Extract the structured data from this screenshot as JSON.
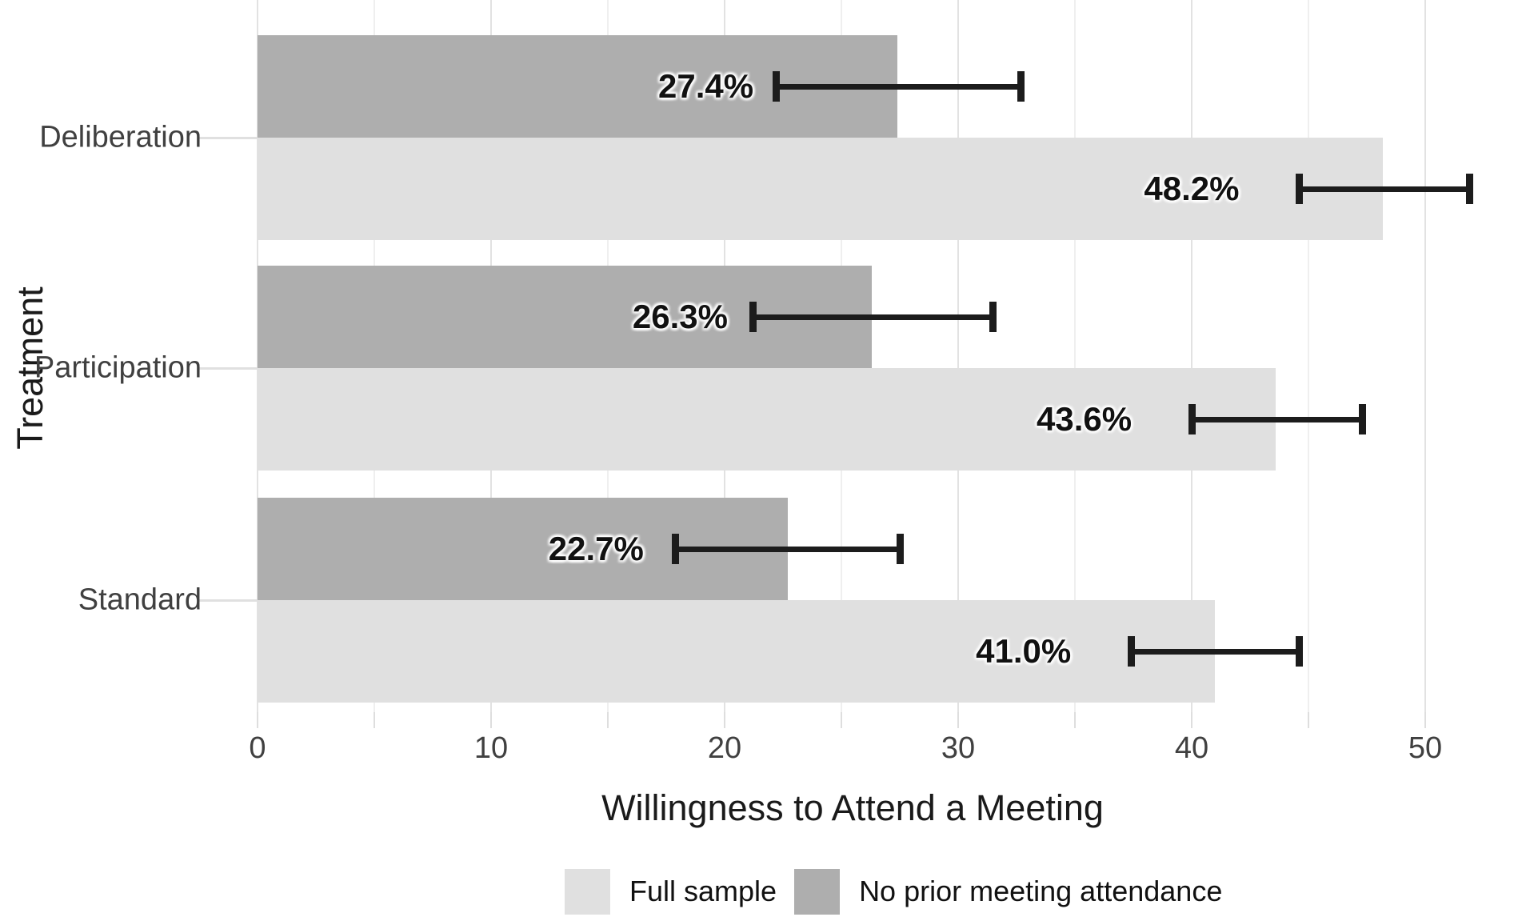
{
  "colors": {
    "full_sample": "#e0e0e0",
    "no_prior": "#aeaeae",
    "error_bar": "#1c1c1c",
    "grid_major": "#e2e2e2",
    "grid_minor": "#efefef",
    "axis_text": "#404040",
    "title_text": "#1a1a1a",
    "background": "#ffffff"
  },
  "chart_data": {
    "type": "bar",
    "orientation": "horizontal",
    "title": "",
    "xlabel": "Willingness to Attend a Meeting",
    "ylabel": "Treatment",
    "xlim": [
      0,
      54.5
    ],
    "x_major_ticks": [
      0,
      10,
      20,
      30,
      40,
      50
    ],
    "x_minor_ticks": [
      5,
      15,
      25,
      35,
      45
    ],
    "grid": true,
    "legend_position": "bottom",
    "categories": [
      "Deliberation",
      "Participation",
      "Standard"
    ],
    "series": [
      {
        "name": "No prior meeting attendance",
        "color_key": "no_prior",
        "values": [
          27.4,
          26.3,
          22.7
        ],
        "labels": [
          "27.4%",
          "26.3%",
          "22.7%"
        ],
        "ci_low": [
          22.2,
          21.2,
          17.9
        ],
        "ci_high": [
          32.7,
          31.5,
          27.5
        ]
      },
      {
        "name": "Full sample",
        "color_key": "full_sample",
        "values": [
          48.2,
          43.6,
          41.0
        ],
        "labels": [
          "48.2%",
          "43.6%",
          "41.0%"
        ],
        "ci_low": [
          44.6,
          40.0,
          37.4
        ],
        "ci_high": [
          51.9,
          47.3,
          44.6
        ]
      }
    ],
    "legend": [
      {
        "label": "Full sample",
        "color_key": "full_sample"
      },
      {
        "label": "No prior meeting attendance",
        "color_key": "no_prior"
      }
    ]
  }
}
